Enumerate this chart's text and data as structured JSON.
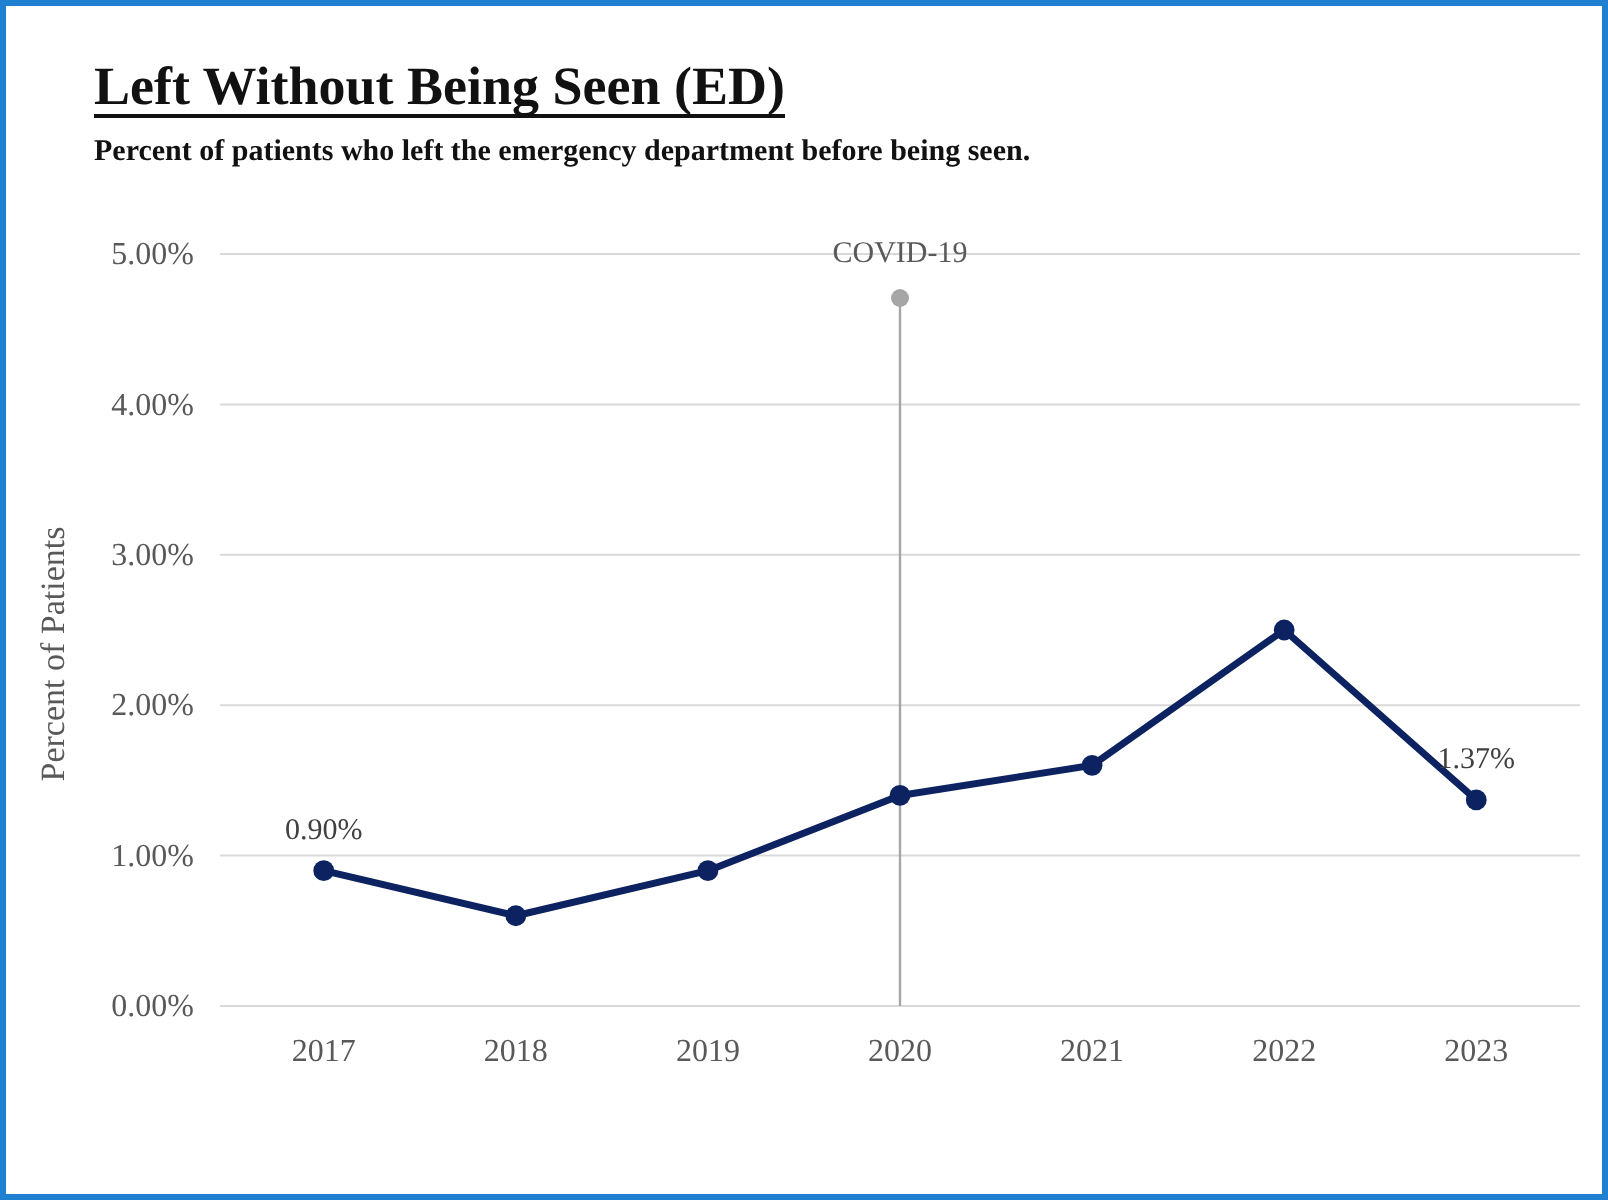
{
  "chart_data": {
    "type": "line",
    "title": "Left Without Being Seen (ED)",
    "subtitle": "Percent of patients who left the emergency department before being seen.",
    "ylabel": "Percent of Patients",
    "categories": [
      "2017",
      "2018",
      "2019",
      "2020",
      "2021",
      "2022",
      "2023"
    ],
    "series": [
      {
        "color": "#0d2260",
        "values": [
          0.9,
          0.6,
          0.9,
          1.4,
          1.6,
          2.5,
          1.37
        ],
        "value_labels": [
          "0.90%",
          null,
          null,
          null,
          null,
          null,
          "1.37%"
        ]
      }
    ],
    "ylim": [
      0,
      5
    ],
    "yticks": [
      {
        "value": 0,
        "label": "0.00%"
      },
      {
        "value": 1,
        "label": "1.00%"
      },
      {
        "value": 2,
        "label": "2.00%"
      },
      {
        "value": 3,
        "label": "3.00%"
      },
      {
        "value": 4,
        "label": "4.00%"
      },
      {
        "value": 5,
        "label": "5.00%"
      }
    ],
    "ref_lines": [
      {
        "axis": "x",
        "value": "2020",
        "label": "COVID-19",
        "color": "#a6a6a6"
      }
    ],
    "grid": "y",
    "marker": "circle",
    "line_style": "solid"
  }
}
